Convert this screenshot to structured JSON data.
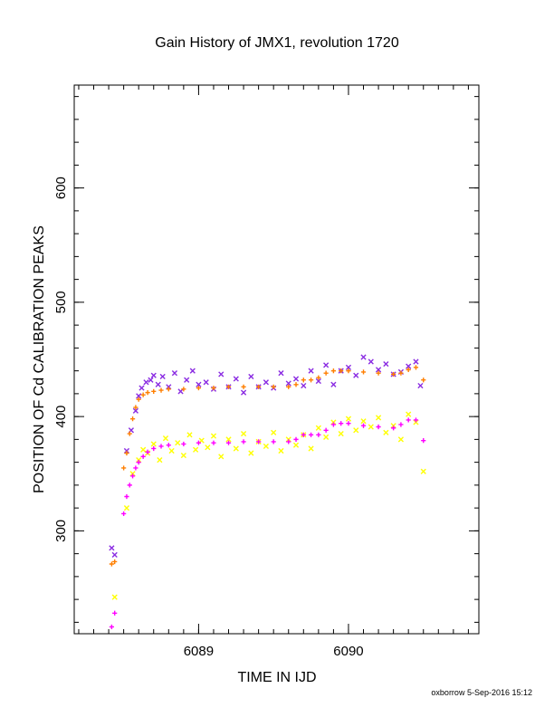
{
  "chart_data": {
    "type": "scatter",
    "title": "Gain History of JMX1, revolution 1720",
    "xlabel": "TIME IN IJD",
    "ylabel": "POSITION OF Cd CALIBRATION PEAKS",
    "footer": "oxborrow  5-Sep-2016 15:12",
    "xlim": [
      6088.17,
      6090.87
    ],
    "ylim": [
      210,
      690
    ],
    "x_ticks": [
      6089,
      6090
    ],
    "y_ticks": [
      300,
      400,
      500,
      600
    ],
    "x_minor_step": 0.1,
    "y_minor_step": 20,
    "grid": false,
    "legend": "none",
    "series": [
      {
        "marker": "x",
        "color": "#8a2be2",
        "x": [
          6088.42,
          6088.44,
          6088.52,
          6088.55,
          6088.58,
          6088.6,
          6088.62,
          6088.65,
          6088.68,
          6088.7,
          6088.73,
          6088.76,
          6088.8,
          6088.84,
          6088.88,
          6088.92,
          6088.96,
          6089.0,
          6089.05,
          6089.1,
          6089.15,
          6089.2,
          6089.25,
          6089.3,
          6089.35,
          6089.4,
          6089.45,
          6089.5,
          6089.55,
          6089.6,
          6089.65,
          6089.7,
          6089.75,
          6089.8,
          6089.85,
          6089.9,
          6089.95,
          6090.0,
          6090.05,
          6090.1,
          6090.15,
          6090.2,
          6090.25,
          6090.3,
          6090.35,
          6090.4,
          6090.45,
          6090.48
        ],
        "y": [
          285,
          279,
          370,
          388,
          405,
          418,
          425,
          430,
          432,
          436,
          428,
          435,
          426,
          438,
          422,
          432,
          440,
          428,
          430,
          424,
          437,
          426,
          433,
          421,
          435,
          426,
          430,
          425,
          438,
          429,
          433,
          427,
          440,
          431,
          445,
          428,
          440,
          443,
          436,
          452,
          448,
          441,
          446,
          437,
          439,
          444,
          448,
          427
        ]
      },
      {
        "marker": "+",
        "color": "#ff7f00",
        "x": [
          6088.42,
          6088.44,
          6088.5,
          6088.52,
          6088.54,
          6088.56,
          6088.58,
          6088.6,
          6088.63,
          6088.66,
          6088.7,
          6088.75,
          6088.8,
          6088.9,
          6089.0,
          6089.1,
          6089.2,
          6089.3,
          6089.4,
          6089.5,
          6089.6,
          6089.65,
          6089.7,
          6089.75,
          6089.8,
          6089.85,
          6089.9,
          6089.95,
          6090.0,
          6090.1,
          6090.2,
          6090.3,
          6090.35,
          6090.4,
          6090.45,
          6090.5
        ],
        "y": [
          271,
          273,
          355,
          368,
          385,
          398,
          408,
          415,
          419,
          421,
          422,
          423,
          424,
          424,
          425,
          425,
          426,
          426,
          426,
          426,
          426,
          428,
          432,
          432,
          434,
          438,
          440,
          440,
          440,
          439,
          438,
          437,
          438,
          441,
          443,
          432
        ]
      },
      {
        "marker": "x",
        "color": "#ffff00",
        "x": [
          6088.44,
          6088.52,
          6088.56,
          6088.6,
          6088.63,
          6088.66,
          6088.7,
          6088.74,
          6088.78,
          6088.82,
          6088.86,
          6088.9,
          6088.94,
          6088.98,
          6089.02,
          6089.06,
          6089.1,
          6089.15,
          6089.2,
          6089.25,
          6089.3,
          6089.35,
          6089.4,
          6089.45,
          6089.5,
          6089.55,
          6089.6,
          6089.65,
          6089.7,
          6089.75,
          6089.8,
          6089.85,
          6089.9,
          6089.95,
          6090.0,
          6090.05,
          6090.1,
          6090.15,
          6090.2,
          6090.25,
          6090.3,
          6090.35,
          6090.4,
          6090.45,
          6090.5
        ],
        "y": [
          242,
          320,
          350,
          362,
          371,
          368,
          376,
          362,
          381,
          370,
          377,
          366,
          384,
          371,
          379,
          373,
          383,
          365,
          380,
          372,
          385,
          368,
          378,
          374,
          386,
          370,
          380,
          375,
          384,
          372,
          390,
          382,
          395,
          385,
          398,
          388,
          396,
          391,
          399,
          386,
          392,
          380,
          402,
          395,
          352
        ]
      },
      {
        "marker": "+",
        "color": "#ff00ff",
        "x": [
          6088.42,
          6088.44,
          6088.5,
          6088.52,
          6088.54,
          6088.56,
          6088.58,
          6088.6,
          6088.63,
          6088.66,
          6088.7,
          6088.75,
          6088.8,
          6088.9,
          6089.0,
          6089.1,
          6089.2,
          6089.3,
          6089.4,
          6089.5,
          6089.6,
          6089.65,
          6089.7,
          6089.75,
          6089.8,
          6089.85,
          6089.9,
          6089.95,
          6090.0,
          6090.1,
          6090.2,
          6090.3,
          6090.35,
          6090.4,
          6090.45,
          6090.5
        ],
        "y": [
          216,
          228,
          315,
          330,
          340,
          348,
          355,
          360,
          365,
          369,
          372,
          374,
          375,
          376,
          377,
          377,
          377,
          378,
          378,
          378,
          378,
          380,
          384,
          384,
          384,
          388,
          393,
          394,
          394,
          392,
          391,
          390,
          393,
          397,
          397,
          379
        ]
      }
    ]
  }
}
